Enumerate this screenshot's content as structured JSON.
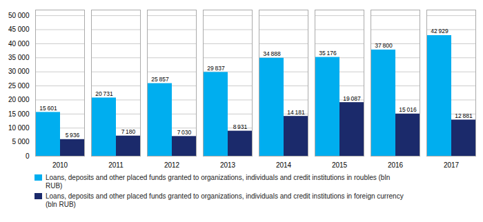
{
  "chart_data": {
    "type": "bar",
    "categories": [
      "2010",
      "2011",
      "2012",
      "2013",
      "2014",
      "2015",
      "2016",
      "2017"
    ],
    "series": [
      {
        "name": "Loans, deposits and other placed funds granted to organizations, individuals and credit institutions in roubles (bln\nRUB)",
        "color": "#00AEEF",
        "values": [
          15601,
          20731,
          25857,
          29837,
          34888,
          35176,
          37800,
          42929
        ],
        "value_labels": [
          "15 601",
          "20 731",
          "25 857",
          "29 837",
          "34 888",
          "35 176",
          "37 800",
          "42 929"
        ]
      },
      {
        "name": "Loans, deposits and other placed funds granted to organizations, individuals and credit institutions in foreign currency\n(bln RUB)",
        "color": "#1B2A6B",
        "values": [
          5936,
          7180,
          7030,
          8931,
          14181,
          19087,
          15016,
          12881
        ],
        "value_labels": [
          "5 936",
          "7 180",
          "7 030",
          "8 931",
          "14 181",
          "19 087",
          "15 016",
          "12 881"
        ]
      }
    ],
    "ylim": [
      0,
      52000
    ],
    "yticks": [
      0,
      {
        "value": 5000,
        "label": "5 000"
      },
      {
        "value": 10000,
        "label": "10 000"
      },
      {
        "value": 15000,
        "label": "15 000"
      },
      {
        "value": 20000,
        "label": "20 000"
      },
      {
        "value": 25000,
        "label": "25 000"
      },
      {
        "value": 30000,
        "label": "30 000"
      },
      {
        "value": 35000,
        "label": "35 000"
      },
      {
        "value": 40000,
        "label": "40 000"
      },
      {
        "value": 45000,
        "label": "45 000"
      },
      {
        "value": 50000,
        "label": "50 000"
      }
    ],
    "grid": true,
    "data_labels": true,
    "legend": "bottom"
  }
}
